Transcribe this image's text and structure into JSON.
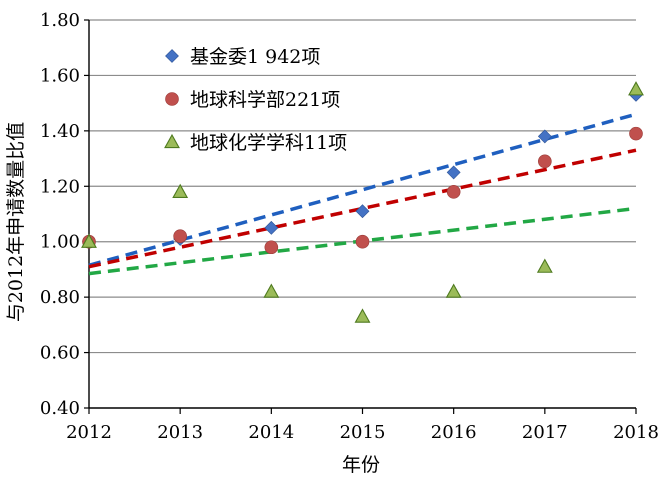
{
  "chart_data": {
    "type": "scatter",
    "xlabel": "年份",
    "ylabel": "与2012年申请数量比值",
    "x": [
      2012,
      2013,
      2014,
      2015,
      2016,
      2017,
      2018
    ],
    "xlim": [
      2012,
      2018
    ],
    "ylim": [
      0.4,
      1.8
    ],
    "y_ticks": [
      "0.40",
      "0.60",
      "0.80",
      "1.00",
      "1.20",
      "1.40",
      "1.60",
      "1.80"
    ],
    "x_ticks": [
      "2012",
      "2013",
      "2014",
      "2015",
      "2016",
      "2017",
      "2018"
    ],
    "grid": "horizontal",
    "legend_position": "top-left",
    "series": [
      {
        "name": "基金委1 942项",
        "marker": "diamond",
        "color": "#4472C4",
        "trend_color": "#1F5FBF",
        "values": [
          1.0,
          1.01,
          1.05,
          1.11,
          1.25,
          1.38,
          1.53
        ],
        "trend": [
          0.915,
          1.46
        ]
      },
      {
        "name": "地球科学部221项",
        "marker": "circle",
        "color": "#C0504D",
        "trend_color": "#C00000",
        "values": [
          1.0,
          1.02,
          0.98,
          1.0,
          1.18,
          1.29,
          1.39
        ],
        "trend": [
          0.91,
          1.33
        ]
      },
      {
        "name": "地球化学学科11项",
        "marker": "triangle",
        "color": "#9BBB59",
        "trend_color": "#22A845",
        "values": [
          1.0,
          1.18,
          0.82,
          0.73,
          0.82,
          0.91,
          1.55
        ],
        "trend": [
          0.885,
          1.12
        ]
      }
    ]
  }
}
